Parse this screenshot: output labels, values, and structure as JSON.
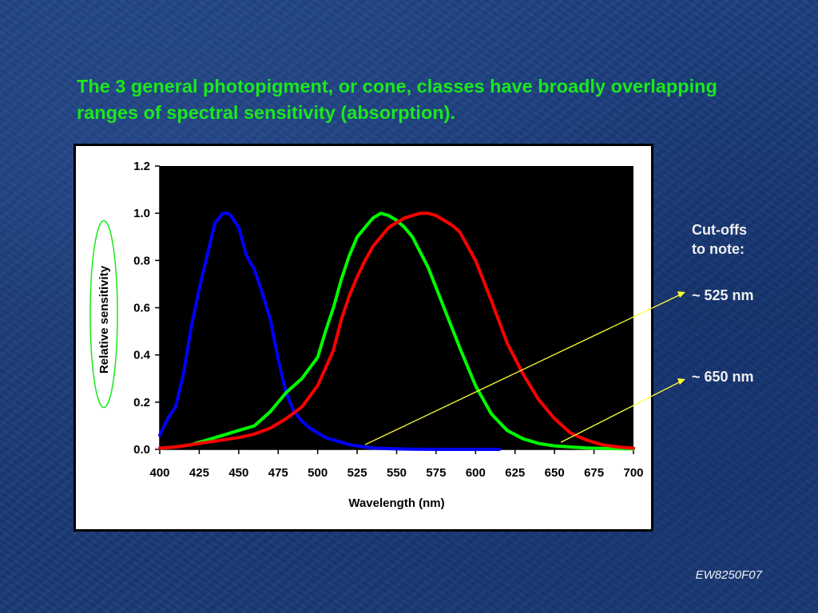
{
  "slide": {
    "title": "The 3 general photopigment, or cone, classes have broadly overlapping ranges of spectral sensitivity (absorption).",
    "annotation_header_line1": "Cut-offs",
    "annotation_header_line2": "to note:",
    "annotation_525": "~ 525 nm",
    "annotation_650": "~ 650 nm",
    "credit": "EW8250F07",
    "colors": {
      "title": "#1be81b",
      "annotation_text": "#f0f0f0",
      "pointer_line": "#ffff33",
      "ylabel_highlight": "#1be81b"
    }
  },
  "chart_data": {
    "type": "line",
    "title": "",
    "xlabel": "Wavelength (nm)",
    "ylabel": "Relative sensitivity",
    "xlim": [
      400,
      700
    ],
    "ylim": [
      0,
      1.2
    ],
    "xticks": [
      400,
      425,
      450,
      475,
      500,
      525,
      550,
      575,
      600,
      625,
      650,
      675,
      700
    ],
    "yticks": [
      "0.0",
      "0.2",
      "0.4",
      "0.6",
      "0.8",
      "1.0",
      "1.2"
    ],
    "plot_background": "#000000",
    "grid": false,
    "legend": "none",
    "series": [
      {
        "color": "#0000ff",
        "x": [
          400,
          405,
          410,
          415,
          420,
          425,
          430,
          435,
          440,
          443,
          445,
          450,
          455,
          460,
          465,
          470,
          475,
          480,
          485,
          490,
          495,
          500,
          505,
          510,
          515,
          520,
          525,
          530,
          535,
          540,
          550,
          560,
          580,
          600,
          615
        ],
        "values": [
          0.06,
          0.13,
          0.18,
          0.32,
          0.52,
          0.68,
          0.82,
          0.96,
          1.0,
          1.0,
          0.99,
          0.94,
          0.82,
          0.76,
          0.66,
          0.55,
          0.38,
          0.24,
          0.16,
          0.12,
          0.09,
          0.07,
          0.05,
          0.04,
          0.03,
          0.02,
          0.015,
          0.01,
          0.006,
          0.004,
          0.002,
          0.001,
          0.0,
          0.0,
          0.0
        ]
      },
      {
        "color": "#00ff00",
        "x": [
          400,
          410,
          420,
          430,
          440,
          450,
          460,
          470,
          480,
          490,
          500,
          505,
          510,
          515,
          520,
          525,
          530,
          535,
          540,
          545,
          550,
          555,
          560,
          570,
          580,
          590,
          600,
          610,
          620,
          630,
          640,
          650,
          660,
          670,
          680,
          690,
          700
        ],
        "values": [
          0.005,
          0.01,
          0.02,
          0.04,
          0.06,
          0.08,
          0.1,
          0.16,
          0.24,
          0.3,
          0.39,
          0.5,
          0.6,
          0.72,
          0.82,
          0.9,
          0.94,
          0.98,
          1.0,
          0.99,
          0.97,
          0.94,
          0.9,
          0.77,
          0.6,
          0.43,
          0.27,
          0.15,
          0.08,
          0.045,
          0.025,
          0.015,
          0.01,
          0.006,
          0.004,
          0.003,
          0.002
        ]
      },
      {
        "color": "#ff0000",
        "x": [
          400,
          410,
          420,
          430,
          440,
          450,
          460,
          470,
          480,
          490,
          500,
          510,
          515,
          520,
          525,
          530,
          535,
          540,
          545,
          550,
          555,
          560,
          565,
          570,
          575,
          580,
          585,
          590,
          600,
          610,
          620,
          630,
          640,
          650,
          660,
          670,
          680,
          690,
          700
        ],
        "values": [
          0.005,
          0.01,
          0.02,
          0.03,
          0.04,
          0.05,
          0.065,
          0.09,
          0.13,
          0.18,
          0.27,
          0.42,
          0.55,
          0.65,
          0.73,
          0.8,
          0.86,
          0.9,
          0.94,
          0.96,
          0.98,
          0.99,
          1.0,
          1.0,
          0.99,
          0.97,
          0.95,
          0.92,
          0.8,
          0.63,
          0.45,
          0.32,
          0.21,
          0.13,
          0.07,
          0.04,
          0.02,
          0.01,
          0.005
        ]
      }
    ],
    "annotations": [
      {
        "text": "~ 525 nm",
        "points_to": {
          "x": 525,
          "y": 0.02
        }
      },
      {
        "text": "~ 650 nm",
        "points_to": {
          "x": 650,
          "y": 0.03
        }
      }
    ]
  }
}
